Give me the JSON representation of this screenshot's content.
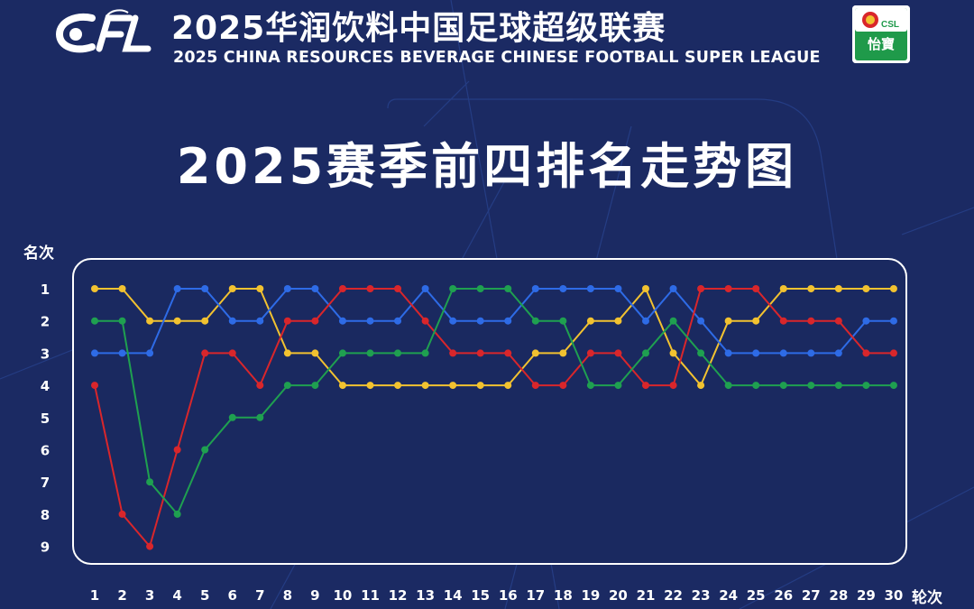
{
  "header": {
    "title_cn": "2025华润饮料中国足球超级联赛",
    "title_en": "2025 CHINA RESOURCES BEVERAGE CHINESE FOOTBALL SUPER LEAGUE",
    "logo_text": "CFL",
    "sponsor_badge": "CSL",
    "sponsor_name": "怡寶"
  },
  "colors": {
    "background": "#1b2a63",
    "plot_bg": "#1a2960",
    "yellow": "#f2c230",
    "blue": "#2e6be6",
    "red": "#d9262b",
    "green": "#1fa050"
  },
  "chart_data": {
    "type": "line",
    "title": "2025赛季前四排名走势图",
    "xlabel": "轮次",
    "ylabel": "名次",
    "x": [
      1,
      2,
      3,
      4,
      5,
      6,
      7,
      8,
      9,
      10,
      11,
      12,
      13,
      14,
      15,
      16,
      17,
      18,
      19,
      20,
      21,
      22,
      23,
      24,
      25,
      26,
      27,
      28,
      29,
      30
    ],
    "ylim": [
      1,
      9
    ],
    "y_ticks": [
      1,
      2,
      3,
      4,
      5,
      6,
      7,
      8,
      9
    ],
    "y_inverted": true,
    "grid": false,
    "legend": "none",
    "series": [
      {
        "color": "#f2c230",
        "values": [
          1,
          1,
          2,
          2,
          2,
          1,
          1,
          3,
          3,
          4,
          4,
          4,
          4,
          4,
          4,
          4,
          3,
          3,
          2,
          2,
          1,
          3,
          4,
          2,
          2,
          1,
          1,
          1,
          1,
          1
        ]
      },
      {
        "color": "#2e6be6",
        "values": [
          3,
          3,
          3,
          1,
          1,
          2,
          2,
          1,
          1,
          2,
          2,
          2,
          1,
          2,
          2,
          2,
          1,
          1,
          1,
          1,
          2,
          1,
          2,
          3,
          3,
          3,
          3,
          3,
          2,
          2
        ]
      },
      {
        "color": "#d9262b",
        "values": [
          4,
          8,
          9,
          6,
          3,
          3,
          4,
          2,
          2,
          1,
          1,
          1,
          2,
          3,
          3,
          3,
          4,
          4,
          3,
          3,
          4,
          4,
          1,
          1,
          1,
          2,
          2,
          2,
          3,
          3
        ]
      },
      {
        "color": "#1fa050",
        "values": [
          2,
          2,
          7,
          8,
          6,
          5,
          5,
          4,
          4,
          3,
          3,
          3,
          3,
          1,
          1,
          1,
          2,
          2,
          4,
          4,
          3,
          2,
          3,
          4,
          4,
          4,
          4,
          4,
          4,
          4
        ]
      }
    ]
  }
}
